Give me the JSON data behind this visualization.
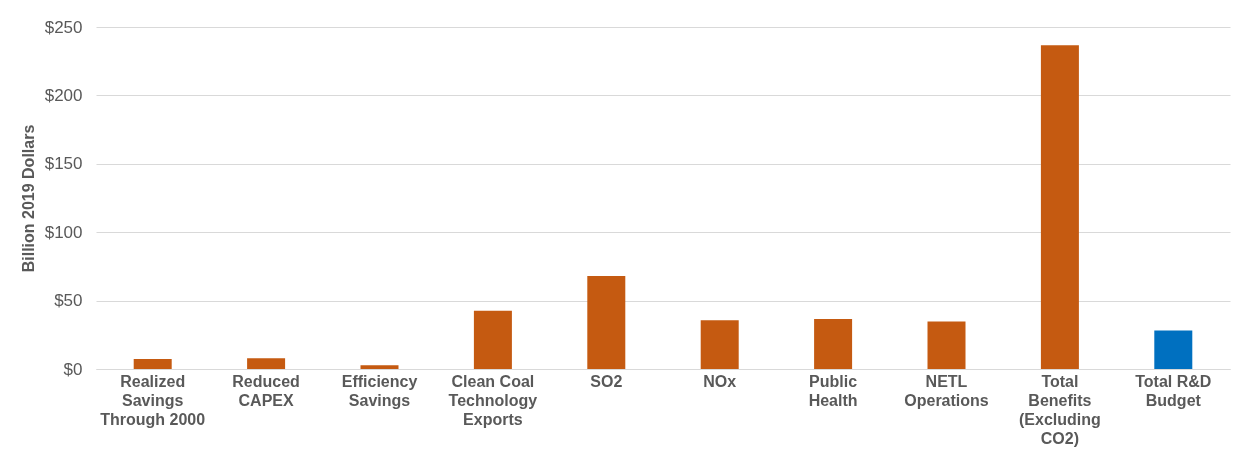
{
  "chart_data": {
    "type": "bar",
    "ylabel": "Billion 2019 Dollars",
    "categories": [
      "Realized Savings Through 2000",
      "Reduced CAPEX",
      "Efficiency Savings",
      "Clean Coal Technology Exports",
      "SO2",
      "NOx",
      "Public Health",
      "NETL Operations",
      "Total Benefits (Excluding CO2)",
      "Total R&D Budget"
    ],
    "values": [
      7.4,
      7.8,
      2.7,
      42.6,
      68,
      35.6,
      36.6,
      34.7,
      236.6,
      28.1
    ],
    "colors": [
      "#c55a11",
      "#c55a11",
      "#c55a11",
      "#c55a11",
      "#c55a11",
      "#c55a11",
      "#c55a11",
      "#c55a11",
      "#c55a11",
      "#0070c0"
    ],
    "ylim": [
      0,
      250
    ],
    "yticks": [
      {
        "value": 0,
        "label": "$0"
      },
      {
        "value": 50,
        "label": "$50"
      },
      {
        "value": 100,
        "label": "$100"
      },
      {
        "value": 150,
        "label": "$150"
      },
      {
        "value": 200,
        "label": "$200"
      },
      {
        "value": 250,
        "label": "$250"
      }
    ],
    "grid": "y"
  }
}
